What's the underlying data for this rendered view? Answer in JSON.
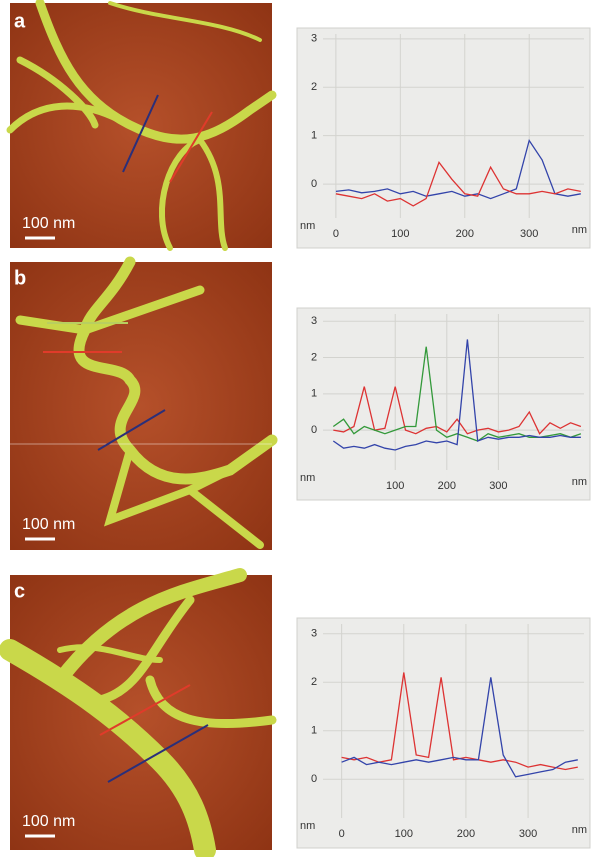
{
  "chart_data": [
    {
      "type": "line",
      "panel_label": "a",
      "scale_bar": "100 nm",
      "y_label": "nm",
      "x_label": "nm",
      "x": [
        0,
        20,
        40,
        60,
        80,
        100,
        120,
        140,
        160,
        180,
        200,
        220,
        240,
        260,
        280,
        300,
        320,
        340,
        360,
        380
      ],
      "series": [
        {
          "color": "#3344aa",
          "values": [
            -0.15,
            -0.12,
            -0.18,
            -0.15,
            -0.1,
            -0.2,
            -0.15,
            -0.25,
            -0.2,
            -0.15,
            -0.25,
            -0.2,
            -0.3,
            -0.2,
            -0.1,
            0.9,
            0.5,
            -0.2,
            -0.25,
            -0.2
          ]
        },
        {
          "color": "#dd3333",
          "values": [
            -0.2,
            -0.25,
            -0.3,
            -0.2,
            -0.35,
            -0.3,
            -0.45,
            -0.3,
            0.45,
            0.1,
            -0.2,
            -0.25,
            0.35,
            -0.1,
            -0.2,
            -0.2,
            -0.15,
            -0.2,
            -0.1,
            -0.15
          ]
        }
      ],
      "xlim": [
        -20,
        385
      ],
      "xticks": [
        0,
        100,
        200,
        300
      ],
      "ylim": [
        -0.7,
        3.1
      ],
      "yticks": [
        0,
        1,
        2,
        3
      ],
      "grid": true
    },
    {
      "type": "line",
      "panel_label": "b",
      "scale_bar": "100 nm",
      "y_label": "nm",
      "x_label": "nm",
      "x": [
        -20,
        0,
        20,
        40,
        60,
        80,
        100,
        120,
        140,
        160,
        180,
        200,
        220,
        240,
        260,
        280,
        300,
        320,
        340,
        360,
        380,
        400,
        420,
        440,
        460
      ],
      "series": [
        {
          "color": "#dd3333",
          "values": [
            0,
            -0.05,
            0.1,
            1.2,
            0,
            0.05,
            1.2,
            0,
            -0.1,
            0.05,
            0.1,
            -0.05,
            0.3,
            -0.1,
            0,
            0.05,
            -0.05,
            0,
            0.1,
            0.5,
            -0.1,
            0.2,
            0.05,
            0.2,
            0.1
          ]
        },
        {
          "color": "#33993a",
          "values": [
            0.1,
            0.3,
            -0.1,
            0.1,
            0,
            -0.1,
            0,
            0.1,
            0.1,
            2.3,
            0,
            -0.2,
            -0.1,
            -0.2,
            -0.3,
            -0.1,
            -0.2,
            -0.15,
            -0.1,
            -0.2,
            -0.2,
            -0.15,
            -0.1,
            -0.2,
            -0.1
          ]
        },
        {
          "color": "#3344aa",
          "values": [
            -0.3,
            -0.5,
            -0.45,
            -0.5,
            -0.4,
            -0.5,
            -0.55,
            -0.45,
            -0.4,
            -0.3,
            -0.35,
            -0.3,
            -0.4,
            2.5,
            -0.3,
            -0.2,
            -0.25,
            -0.2,
            -0.2,
            -0.15,
            -0.2,
            -0.2,
            -0.15,
            -0.2,
            -0.2
          ]
        }
      ],
      "xlim": [
        -40,
        466
      ],
      "xticks": [
        100,
        200,
        300
      ],
      "ylim": [
        -1.1,
        3.2
      ],
      "yticks": [
        0,
        1,
        2,
        3
      ],
      "grid": true
    },
    {
      "type": "line",
      "panel_label": "c",
      "scale_bar": "100 nm",
      "y_label": "nm",
      "x_label": "nm",
      "x": [
        0,
        20,
        40,
        60,
        80,
        100,
        120,
        140,
        160,
        180,
        200,
        220,
        240,
        260,
        280,
        300,
        320,
        340,
        360,
        380
      ],
      "series": [
        {
          "color": "#dd3333",
          "values": [
            0.45,
            0.4,
            0.45,
            0.35,
            0.4,
            2.2,
            0.5,
            0.45,
            2.1,
            0.4,
            0.45,
            0.4,
            0.35,
            0.4,
            0.35,
            0.25,
            0.3,
            0.25,
            0.2,
            0.25
          ]
        },
        {
          "color": "#3344aa",
          "values": [
            0.35,
            0.45,
            0.3,
            0.35,
            0.3,
            0.35,
            0.4,
            0.35,
            0.4,
            0.45,
            0.4,
            0.4,
            2.1,
            0.5,
            0.05,
            0.1,
            0.15,
            0.2,
            0.35,
            0.4
          ]
        }
      ],
      "xlim": [
        -30,
        390
      ],
      "xticks": [
        0,
        100,
        200,
        300
      ],
      "ylim": [
        -0.8,
        3.2
      ],
      "yticks": [
        0,
        1,
        2,
        3
      ],
      "grid": true
    }
  ]
}
